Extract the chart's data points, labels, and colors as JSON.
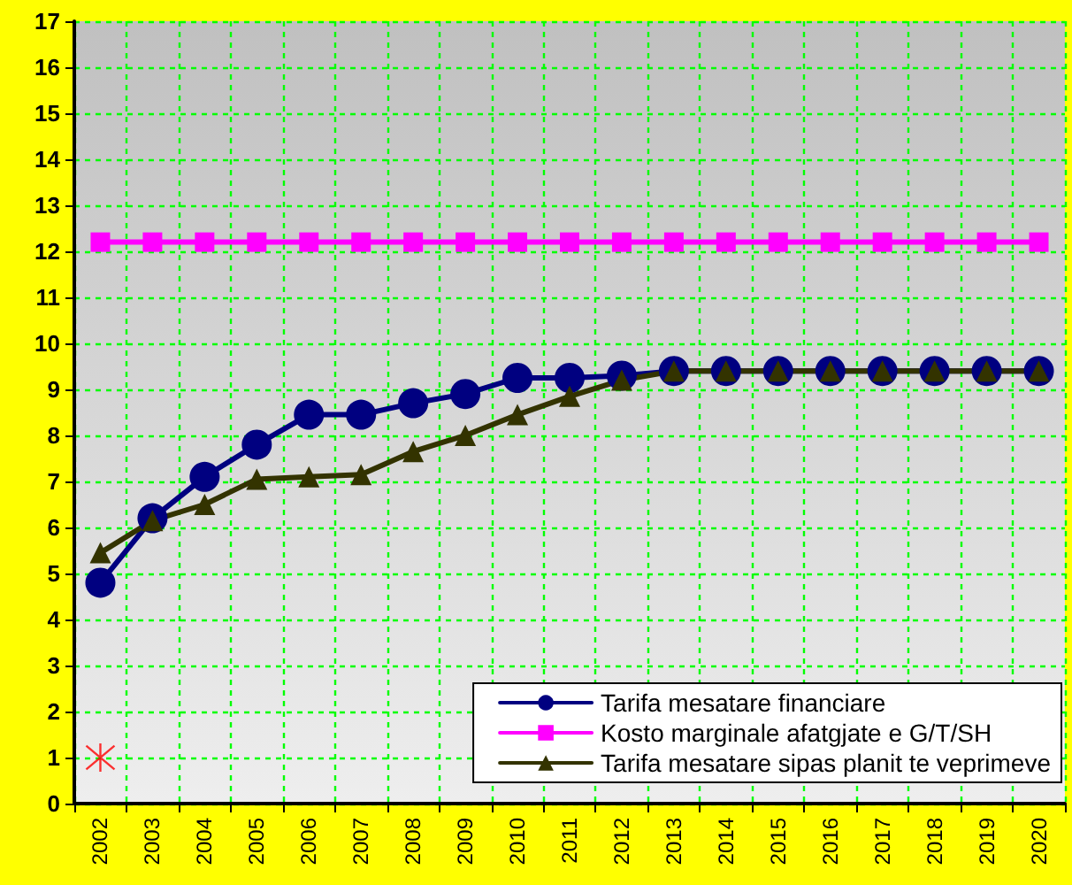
{
  "chart_data": {
    "type": "line",
    "categories": [
      "2002",
      "2003",
      "2004",
      "2005",
      "2006",
      "2007",
      "2008",
      "2009",
      "2010",
      "2011",
      "2012",
      "2013",
      "2014",
      "2015",
      "2016",
      "2017",
      "2018",
      "2019",
      "2020"
    ],
    "series": [
      {
        "name": "Tarifa mesatare financiare",
        "color": "#000080",
        "marker": "circle",
        "values": [
          4.8,
          6.2,
          7.1,
          7.8,
          8.45,
          8.45,
          8.7,
          8.9,
          9.25,
          9.25,
          9.3,
          9.4,
          9.4,
          9.4,
          9.4,
          9.4,
          9.4,
          9.4,
          9.4
        ]
      },
      {
        "name": "Kosto marginale afatgjate e G/T/SH",
        "color": "#ff00ff",
        "marker": "square",
        "values": [
          12.2,
          12.2,
          12.2,
          12.2,
          12.2,
          12.2,
          12.2,
          12.2,
          12.2,
          12.2,
          12.2,
          12.2,
          12.2,
          12.2,
          12.2,
          12.2,
          12.2,
          12.2,
          12.2
        ]
      },
      {
        "name": "Tarifa mesatare sipas planit te veprimeve",
        "color": "#333300",
        "marker": "triangle",
        "values": [
          5.45,
          6.15,
          6.5,
          7.05,
          7.1,
          7.15,
          7.65,
          8.0,
          8.45,
          8.85,
          9.2,
          9.4,
          9.4,
          9.4,
          9.4,
          9.4,
          9.4,
          9.4,
          9.4
        ]
      },
      {
        "type": "scatter",
        "color": "#ff0000",
        "marker": "cross",
        "values": [
          1,
          null,
          null,
          null,
          null,
          null,
          null,
          null,
          null,
          null,
          null,
          null,
          null,
          null,
          null,
          null,
          null,
          null,
          null
        ]
      }
    ],
    "ylim": [
      0,
      17
    ],
    "yticks": [
      0,
      1,
      2,
      3,
      4,
      5,
      6,
      7,
      8,
      9,
      10,
      11,
      12,
      13,
      14,
      15,
      16,
      17
    ],
    "grid": true,
    "legend": "bottom right"
  }
}
